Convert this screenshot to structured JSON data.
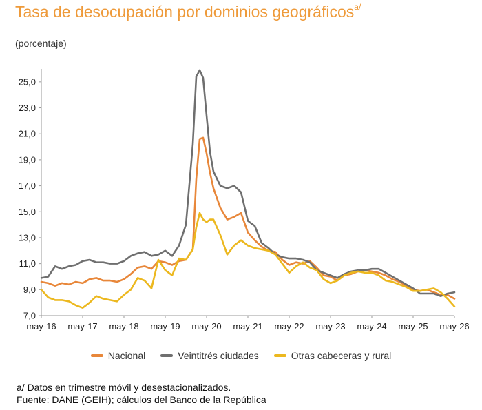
{
  "title": "Tasa de desocupación por dominios geográficos",
  "title_sup": "a/",
  "unit_label": "(porcentaje)",
  "notes": [
    "a/ Datos en trimestre móvil y desestacionalizados.",
    "Fuente: DANE (GEIH); cálculos del Banco de la República"
  ],
  "colors": {
    "nacional": "#e8873a",
    "veintitres": "#6f6f6f",
    "otras": "#ecb81f",
    "title": "#ee9a3a"
  },
  "chart_data": {
    "type": "line",
    "ylim": [
      7.0,
      26.0
    ],
    "y_ticks": [
      "25,0",
      "23,0",
      "21,0",
      "19,0",
      "17,0",
      "15,0",
      "13,0",
      "11,0",
      "9,0",
      "7,0"
    ],
    "y_tick_values": [
      25,
      23,
      21,
      19,
      17,
      15,
      13,
      11,
      9,
      7
    ],
    "x_ticks": [
      "may-16",
      "may-17",
      "may-18",
      "may-19",
      "may-20",
      "may-21",
      "may-22",
      "may-23",
      "may-24",
      "may-25",
      "may-26"
    ],
    "x_tick_values": [
      0,
      12,
      24,
      36,
      48,
      60,
      72,
      84,
      96,
      108,
      120
    ],
    "grid": false,
    "legend_position": "bottom",
    "series": [
      {
        "name": "Nacional",
        "color_key": "nacional",
        "x": [
          0,
          2,
          4,
          6,
          8,
          10,
          12,
          14,
          16,
          18,
          20,
          22,
          24,
          26,
          28,
          30,
          32,
          34,
          36,
          38,
          40,
          42,
          44,
          45,
          46,
          47,
          48,
          49,
          50,
          52,
          54,
          56,
          58,
          60,
          62,
          64,
          66,
          68,
          70,
          72,
          74,
          76,
          78,
          80,
          82,
          84,
          86,
          88,
          90,
          92,
          94,
          96,
          98,
          100,
          102,
          104,
          106,
          108,
          110,
          112,
          114,
          116,
          118,
          120
        ],
        "y": [
          9.6,
          9.5,
          9.3,
          9.5,
          9.4,
          9.6,
          9.5,
          9.8,
          9.9,
          9.7,
          9.7,
          9.6,
          9.8,
          10.2,
          10.7,
          10.8,
          10.6,
          11.2,
          11.1,
          10.9,
          11.2,
          11.3,
          12.1,
          17.5,
          20.6,
          20.7,
          19.5,
          18.0,
          16.8,
          15.3,
          14.4,
          14.6,
          14.9,
          13.4,
          12.8,
          12.3,
          12.0,
          11.9,
          11.3,
          10.9,
          11.1,
          11.0,
          11.2,
          10.7,
          10.1,
          10.0,
          9.7,
          10.1,
          10.2,
          10.4,
          10.5,
          10.4,
          10.3,
          10.1,
          9.8,
          9.6,
          9.3,
          9.0,
          8.9,
          9.0,
          8.8,
          8.6,
          8.6,
          8.3
        ]
      },
      {
        "name": "Veintitrés ciudades",
        "color_key": "veintitres",
        "x": [
          0,
          2,
          4,
          6,
          8,
          10,
          12,
          14,
          16,
          18,
          20,
          22,
          24,
          26,
          28,
          30,
          32,
          34,
          36,
          38,
          40,
          42,
          44,
          45,
          46,
          47,
          48,
          49,
          50,
          52,
          54,
          56,
          58,
          60,
          62,
          64,
          66,
          68,
          70,
          72,
          74,
          76,
          78,
          80,
          82,
          84,
          86,
          88,
          90,
          92,
          94,
          96,
          98,
          100,
          102,
          104,
          106,
          108,
          110,
          112,
          114,
          116,
          118,
          120
        ],
        "y": [
          9.9,
          10.0,
          10.8,
          10.6,
          10.8,
          10.9,
          11.2,
          11.3,
          11.1,
          11.1,
          11.0,
          11.0,
          11.2,
          11.6,
          11.8,
          11.9,
          11.6,
          11.7,
          12.0,
          11.6,
          12.4,
          14.0,
          20.2,
          25.4,
          25.9,
          25.3,
          22.4,
          19.6,
          18.1,
          17.0,
          16.8,
          17.0,
          16.5,
          14.3,
          13.9,
          12.6,
          12.2,
          11.7,
          11.5,
          11.4,
          11.4,
          11.3,
          11.1,
          10.5,
          10.3,
          10.1,
          9.9,
          10.2,
          10.4,
          10.5,
          10.5,
          10.6,
          10.6,
          10.3,
          10.0,
          9.7,
          9.4,
          9.1,
          8.7,
          8.7,
          8.7,
          8.5,
          8.7,
          8.8
        ]
      },
      {
        "name": "Otras cabeceras y rural",
        "color_key": "otras",
        "x": [
          0,
          2,
          4,
          6,
          8,
          10,
          12,
          14,
          16,
          18,
          20,
          22,
          24,
          26,
          28,
          30,
          32,
          34,
          36,
          38,
          40,
          42,
          44,
          45,
          46,
          47,
          48,
          49,
          50,
          52,
          54,
          56,
          58,
          60,
          62,
          64,
          66,
          68,
          70,
          72,
          74,
          76,
          78,
          80,
          82,
          84,
          86,
          88,
          90,
          92,
          94,
          96,
          98,
          100,
          102,
          104,
          106,
          108,
          110,
          112,
          114,
          116,
          118,
          120
        ],
        "y": [
          9.0,
          8.4,
          8.2,
          8.2,
          8.1,
          7.8,
          7.6,
          8.0,
          8.5,
          8.3,
          8.2,
          8.1,
          8.6,
          9.0,
          9.9,
          9.7,
          9.1,
          11.3,
          10.5,
          10.1,
          11.4,
          11.3,
          12.1,
          13.8,
          14.9,
          14.4,
          14.2,
          14.4,
          14.4,
          13.2,
          11.7,
          12.4,
          12.8,
          12.4,
          12.2,
          12.1,
          12.0,
          11.7,
          11.0,
          10.3,
          10.8,
          11.1,
          10.7,
          10.5,
          9.8,
          9.5,
          9.7,
          10.1,
          10.3,
          10.4,
          10.3,
          10.3,
          10.1,
          9.7,
          9.6,
          9.4,
          9.2,
          8.9,
          8.9,
          9.0,
          9.1,
          8.8,
          8.3,
          7.7
        ]
      }
    ]
  }
}
